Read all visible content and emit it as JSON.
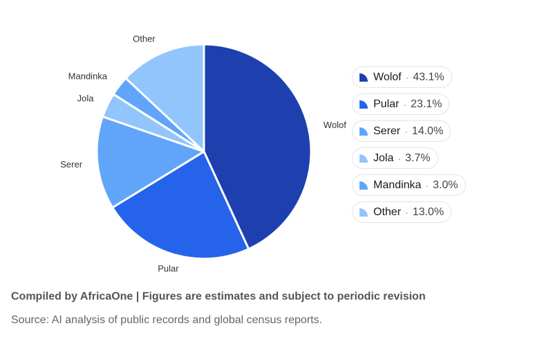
{
  "chart_data": {
    "type": "pie",
    "slices": [
      {
        "label": "Wolof",
        "value": 43.1,
        "display": "43.1%",
        "color": "#1e40af"
      },
      {
        "label": "Pular",
        "value": 23.1,
        "display": "23.1%",
        "color": "#2563eb"
      },
      {
        "label": "Serer",
        "value": 14.0,
        "display": "14.0%",
        "color": "#60a5fa"
      },
      {
        "label": "Jola",
        "value": 3.7,
        "display": "3.7%",
        "color": "#93c5fd"
      },
      {
        "label": "Mandinka",
        "value": 3.0,
        "display": "3.0%",
        "color": "#60a5fa"
      },
      {
        "label": "Other",
        "value": 13.0,
        "display": "13.0%",
        "color": "#93c5fd"
      }
    ],
    "legend_placement": "right"
  },
  "footer": {
    "title": "Compiled by AfricaOne | Figures are estimates and subject to periodic revision",
    "source": "Source: AI analysis of public records and global census reports."
  }
}
